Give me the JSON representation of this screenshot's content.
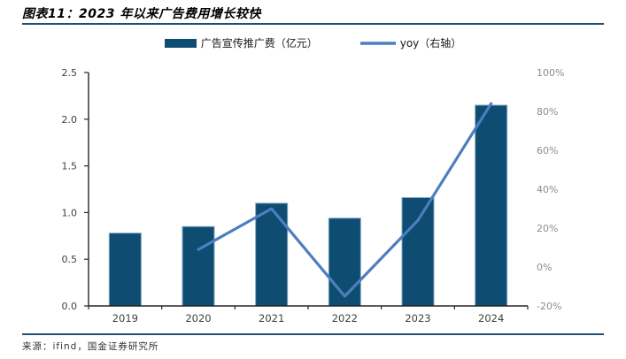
{
  "figure": {
    "title": "图表11：2023 年以来广告费用增长较快",
    "source": "来源：ifind，国金证券研究所"
  },
  "legend": [
    {
      "label": "广告宣传推广费（亿元）",
      "marker": "bar-swatch",
      "color": "#0e4d71"
    },
    {
      "label": "yoy（右轴）",
      "marker": "line-swatch",
      "color": "#4d7ebf"
    }
  ],
  "chart_data": {
    "type": "bar+line",
    "categories": [
      "2019",
      "2020",
      "2021",
      "2022",
      "2023",
      "2024"
    ],
    "series": [
      {
        "name": "广告宣传推广费（亿元）",
        "type": "bar",
        "axis": "left",
        "unit": "亿元",
        "values": [
          0.78,
          0.85,
          1.1,
          0.94,
          1.16,
          2.15
        ]
      },
      {
        "name": "yoy（右轴）",
        "type": "line",
        "axis": "right",
        "unit": "%",
        "values": [
          null,
          9,
          30,
          -15,
          24,
          84
        ]
      }
    ],
    "left_axis": {
      "min": 0.0,
      "max": 2.5,
      "ticks": [
        "0.0",
        "0.5",
        "1.0",
        "1.5",
        "2.0",
        "2.5"
      ]
    },
    "right_axis": {
      "min": -20,
      "max": 100,
      "ticks": [
        "-20%",
        "0%",
        "20%",
        "40%",
        "60%",
        "80%",
        "100%"
      ]
    },
    "grid": false,
    "legend_position": "top"
  },
  "colors": {
    "bar": "#0e4d71",
    "bar_edge": "#7fa6c2",
    "line": "#4d7ebf",
    "rule": "#1f4e79",
    "axis": "#262626",
    "left_tick_text": "#404040",
    "right_tick_text": "#8c8c8c",
    "x_tick_text": "#404040"
  }
}
